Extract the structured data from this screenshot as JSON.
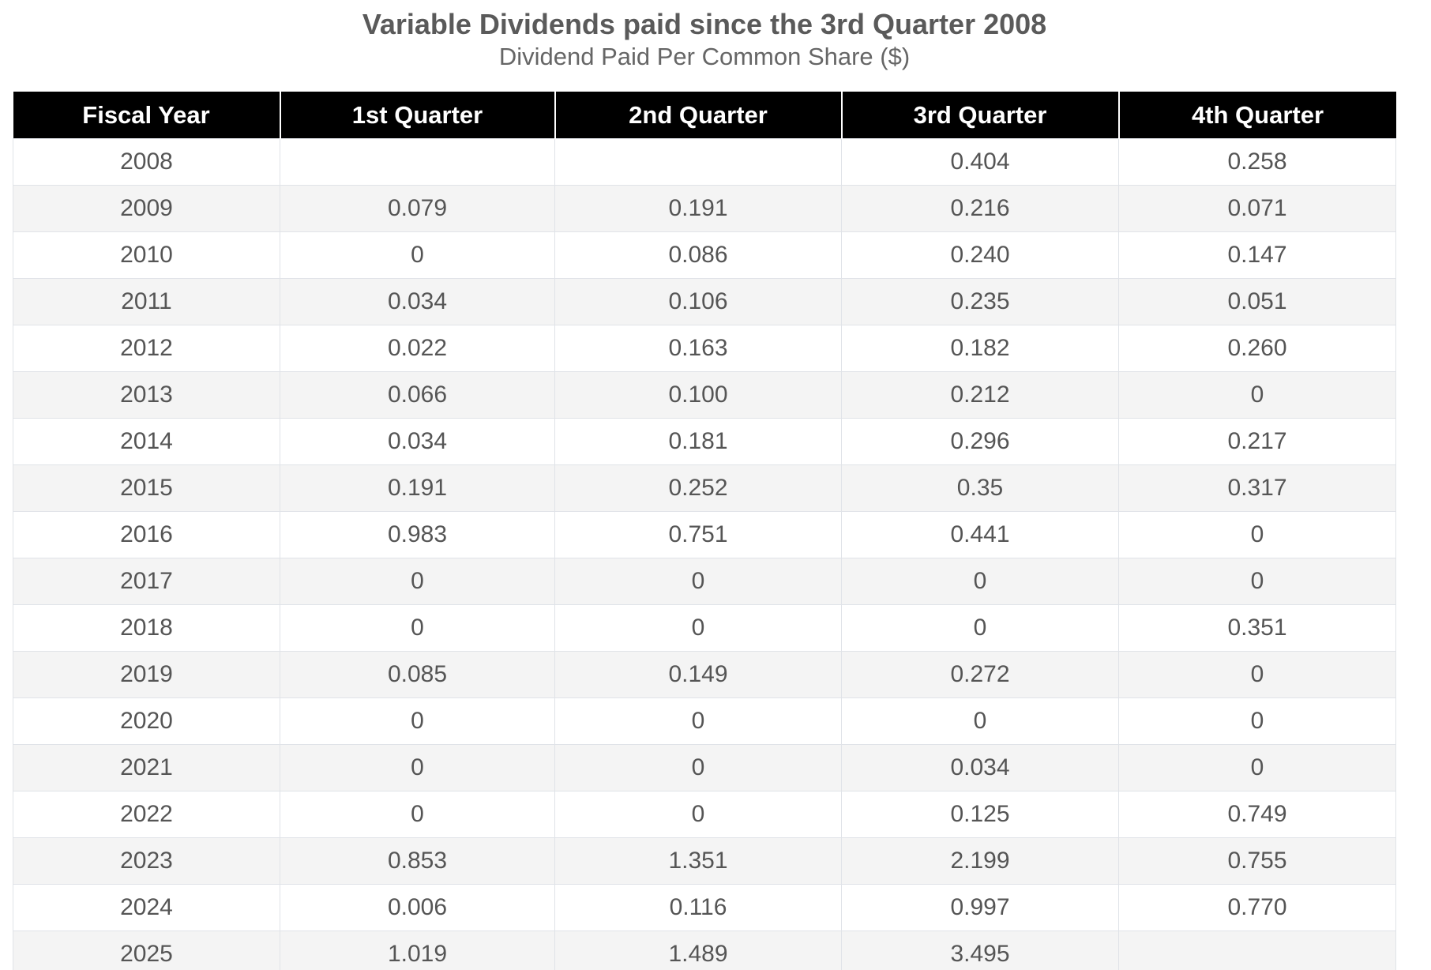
{
  "header": {
    "title": "Variable Dividends paid since the 3rd Quarter 2008",
    "subtitle": "Dividend Paid Per Common Share ($)"
  },
  "table": {
    "columns": [
      "Fiscal Year",
      "1st Quarter",
      "2nd Quarter",
      "3rd Quarter",
      "4th Quarter"
    ],
    "rows": [
      [
        "2008",
        null,
        null,
        "0.404",
        "0.258"
      ],
      [
        "2009",
        "0.079",
        "0.191",
        "0.216",
        "0.071"
      ],
      [
        "2010",
        "0",
        "0.086",
        "0.240",
        "0.147"
      ],
      [
        "2011",
        "0.034",
        "0.106",
        "0.235",
        "0.051"
      ],
      [
        "2012",
        "0.022",
        "0.163",
        "0.182",
        "0.260"
      ],
      [
        "2013",
        "0.066",
        "0.100",
        "0.212",
        "0"
      ],
      [
        "2014",
        "0.034",
        "0.181",
        "0.296",
        "0.217"
      ],
      [
        "2015",
        "0.191",
        "0.252",
        "0.35",
        "0.317"
      ],
      [
        "2016",
        "0.983",
        "0.751",
        "0.441",
        "0"
      ],
      [
        "2017",
        "0",
        "0",
        "0",
        "0"
      ],
      [
        "2018",
        "0",
        "0",
        "0",
        "0.351"
      ],
      [
        "2019",
        "0.085",
        "0.149",
        "0.272",
        "0"
      ],
      [
        "2020",
        "0",
        "0",
        "0",
        "0"
      ],
      [
        "2021",
        "0",
        "0",
        "0.034",
        "0"
      ],
      [
        "2022",
        "0",
        "0",
        "0.125",
        "0.749"
      ],
      [
        "2023",
        "0.853",
        "1.351",
        "2.199",
        "0.755"
      ],
      [
        "2024",
        "0.006",
        "0.116",
        "0.997",
        "0.770"
      ],
      [
        "2025",
        "1.019",
        "1.489",
        "3.495",
        null
      ]
    ]
  }
}
